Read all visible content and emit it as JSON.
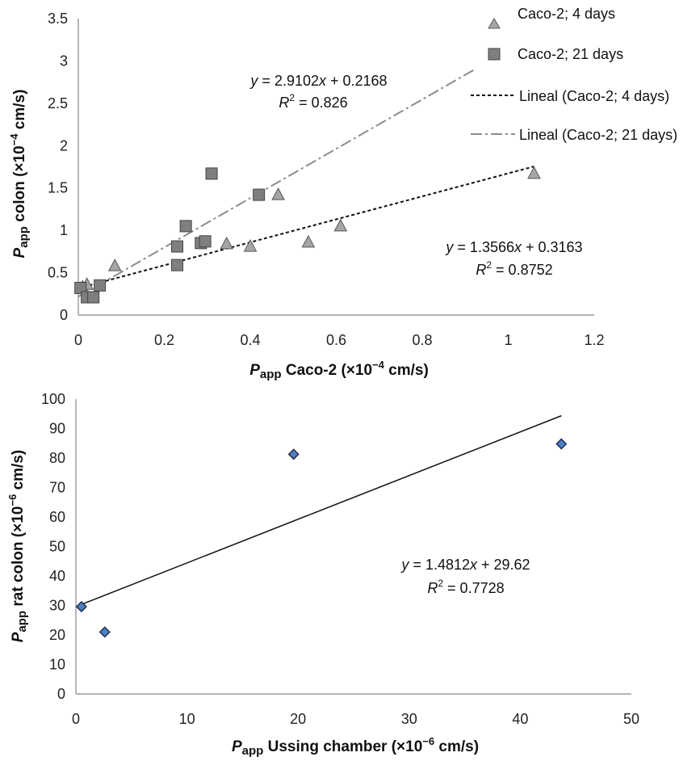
{
  "chart_data": [
    {
      "type": "scatter",
      "xlabel": "P_app Caco-2 (×10⁻⁴ cm/s)",
      "xlabel_parts": {
        "p": "P",
        "sub": "app",
        "rest": " Caco-2 (×10",
        "exp": "−4",
        "unit": " cm/s)"
      },
      "ylabel": "P_app colon (×10⁻⁴ cm/s)",
      "ylabel_parts": {
        "p": "P",
        "sub": "app",
        "rest": "  colon  (×10",
        "exp": "−4",
        "unit": " cm/s)"
      },
      "xlim": [
        0,
        1.2
      ],
      "ylim": [
        0,
        3.5
      ],
      "xticks": [
        "0",
        "0.2",
        "0.4",
        "0.6",
        "0.8",
        "1",
        "1.2"
      ],
      "xtick_values": [
        0,
        0.2,
        0.4,
        0.6,
        0.8,
        1.0,
        1.2
      ],
      "yticks": [
        "0",
        "0.5",
        "1",
        "1.5",
        "2",
        "2.5",
        "3",
        "3.5"
      ],
      "ytick_values": [
        0,
        0.5,
        1.0,
        1.5,
        2.0,
        2.5,
        3.0,
        3.5
      ],
      "grid": false,
      "legend_position": "top-right",
      "series": [
        {
          "name": "Caco-2; 4 days",
          "marker": "triangle",
          "color": "#a6a6a6",
          "x": [
            0.01,
            0.02,
            0.085,
            0.345,
            0.4,
            0.465,
            0.535,
            0.61,
            1.06
          ],
          "y": [
            0.33,
            0.36,
            0.58,
            0.84,
            0.81,
            1.42,
            0.86,
            1.05,
            1.67
          ]
        },
        {
          "name": "Caco-2; 21 days",
          "marker": "square",
          "color": "#7f7f7f",
          "x": [
            0.005,
            0.02,
            0.035,
            0.05,
            0.23,
            0.23,
            0.25,
            0.285,
            0.295,
            0.31,
            0.42
          ],
          "y": [
            0.32,
            0.21,
            0.21,
            0.35,
            0.59,
            0.81,
            1.05,
            0.85,
            0.87,
            1.67,
            1.42
          ]
        }
      ],
      "trendlines": [
        {
          "name": "Lineal (Caco-2; 4 days)",
          "style": "dashed",
          "color": "#111111",
          "slope": 1.3566,
          "intercept": 0.3163,
          "x_range": [
            0,
            1.06
          ],
          "equation": {
            "lhs": "y",
            "mid": " = 1.3566",
            "x": "x",
            "rest": " + 0.3163"
          },
          "r2": {
            "r": "R",
            "sq": "2",
            "rest": " = 0.8752"
          }
        },
        {
          "name": "Lineal (Caco-2; 21 days)",
          "style": "dashdot",
          "color": "#8c8c8c",
          "slope": 2.9102,
          "intercept": 0.2168,
          "x_range": [
            0,
            0.92
          ],
          "equation": {
            "lhs": "y",
            "mid": " = 2.9102",
            "x": "x",
            "rest": " + 0.2168"
          },
          "r2": {
            "r": "R",
            "sq": "2",
            "rest": " = 0.826"
          }
        }
      ]
    },
    {
      "type": "scatter",
      "xlabel": "P_app Ussing chamber (×10⁻⁶ cm/s)",
      "xlabel_parts": {
        "p": "P",
        "sub": "app",
        "rest": "  Ussing chamber (×10",
        "exp": "−6",
        "unit": " cm/s)"
      },
      "ylabel": "P_app rat colon (×10⁻⁶ cm/s)",
      "ylabel_parts": {
        "p": "P",
        "sub": "app",
        "rest": "  rat colon (×10",
        "exp": "−6",
        "unit": " cm/s)"
      },
      "xlim": [
        0,
        50
      ],
      "ylim": [
        0,
        100
      ],
      "xticks": [
        "0",
        "10",
        "20",
        "30",
        "40",
        "50"
      ],
      "xtick_values": [
        0,
        10,
        20,
        30,
        40,
        50
      ],
      "yticks": [
        "0",
        "10",
        "20",
        "30",
        "40",
        "50",
        "60",
        "70",
        "80",
        "90",
        "100"
      ],
      "ytick_values": [
        0,
        10,
        20,
        30,
        40,
        50,
        60,
        70,
        80,
        90,
        100
      ],
      "grid": false,
      "series": [
        {
          "marker": "diamond",
          "color": "#1f2d4d",
          "fill": "#4f7fc0",
          "x": [
            0.5,
            2.6,
            19.6,
            43.7
          ],
          "y": [
            29.6,
            21.0,
            81.3,
            84.8
          ]
        }
      ],
      "trendlines": [
        {
          "style": "solid",
          "color": "#111111",
          "slope": 1.4812,
          "intercept": 29.62,
          "x_range": [
            0.5,
            43.7
          ],
          "equation": {
            "lhs": "y",
            "mid": " = 1.4812",
            "x": "x",
            "rest": " + 29.62"
          },
          "r2": {
            "r": "R",
            "sq": "2",
            "rest": " = 0.7728"
          }
        }
      ]
    }
  ]
}
